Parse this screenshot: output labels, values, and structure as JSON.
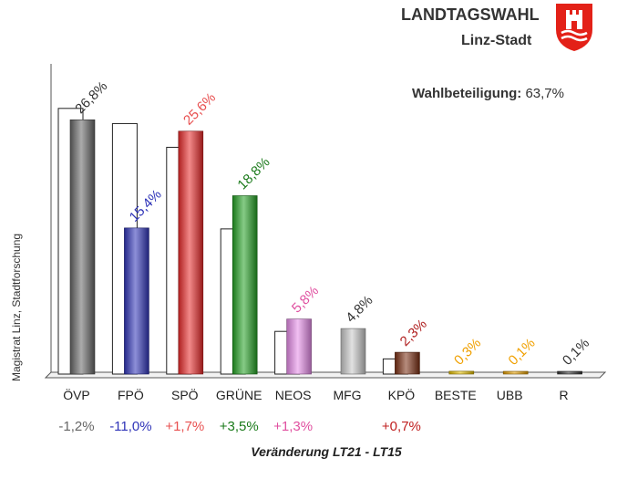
{
  "header": {
    "title": "LANDTAGSWAHL",
    "subtitle": "Linz-Stadt",
    "turnout_label": "Wahlbeteiligung:",
    "turnout_value": "63,7%",
    "logo_icon": "linz-coat-of-arms-icon"
  },
  "source_label": "Magistrat Linz, Stadtforschung",
  "chart_data": {
    "type": "bar",
    "title": "",
    "xlabel": "Veränderung  LT21 - LT15",
    "ylabel": "",
    "ylim": [
      0,
      30
    ],
    "grid": false,
    "legend": "none",
    "categories": [
      "ÖVP",
      "FPÖ",
      "SPÖ",
      "GRÜNE",
      "NEOS",
      "MFG",
      "KPÖ",
      "BESTE",
      "UBB",
      "R"
    ],
    "series": [
      {
        "values": [
          26.8,
          15.4,
          25.6,
          18.8,
          5.8,
          4.8,
          2.3,
          0.3,
          0.1,
          0.1
        ],
        "labels": [
          "26,8%",
          "15,4%",
          "25,6%",
          "18,8%",
          "5,8%",
          "4,8%",
          "2,3%",
          "0,3%",
          "0,1%",
          "0,1%"
        ],
        "colors": [
          "#666666",
          "#2f34b8",
          "#e82828",
          "#23a023",
          "#e58ae8",
          "#c8c8c8",
          "#7a2e12",
          "#e6c000",
          "#e8a000",
          "#333333"
        ]
      },
      {
        "values": [
          28.0,
          26.4,
          23.9,
          15.3,
          4.5,
          null,
          1.6,
          null,
          null,
          null
        ]
      }
    ],
    "changes": [
      "-1,2%",
      "-11,0%",
      "+1,7%",
      "+3,5%",
      "+1,3%",
      "",
      "+0,7%",
      "",
      "",
      ""
    ],
    "label_colors": [
      "#333333",
      "#2f34b8",
      "#e85050",
      "#1a7a1a",
      "#e050a0",
      "#333333",
      "#b02020",
      "#f0a000",
      "#f0a000",
      "#333333"
    ],
    "change_colors": [
      "#666666",
      "#2f34b8",
      "#e85050",
      "#1a7a1a",
      "#e050a0",
      "#333333",
      "#c02020",
      "#333333",
      "#333333",
      "#333333"
    ]
  }
}
